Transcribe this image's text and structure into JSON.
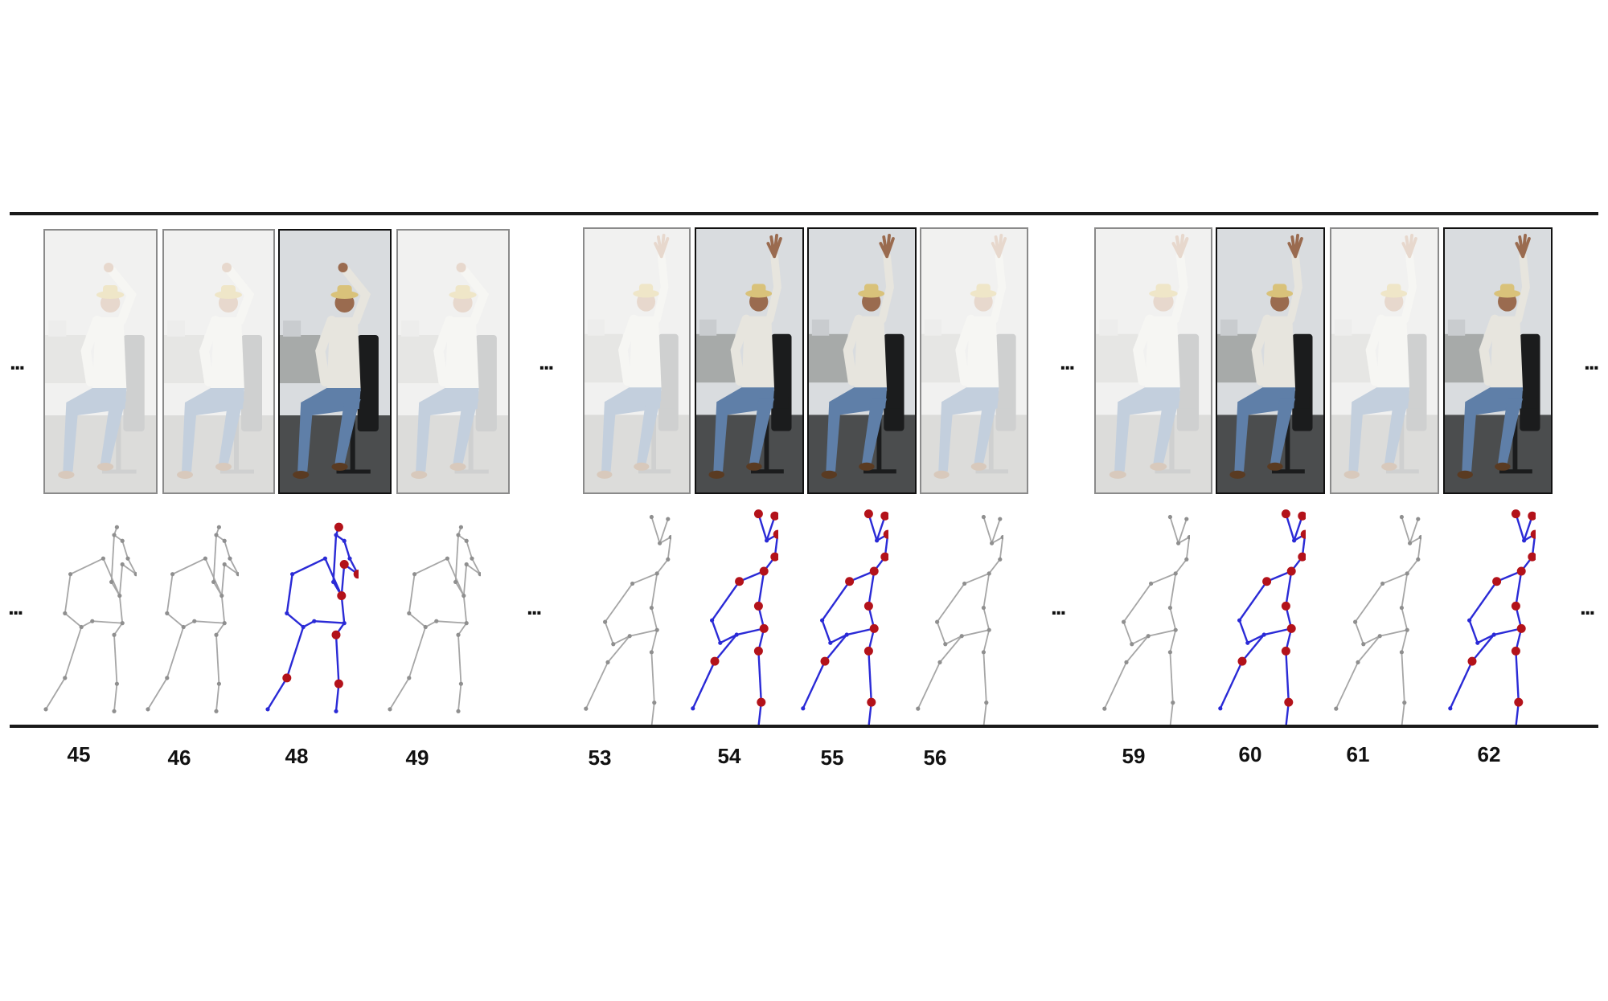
{
  "ellipsis": "...",
  "colors": {
    "faded_skeleton": "#a6a6a6",
    "key_skeleton": "#2a2ad6",
    "joint": "#b3121a",
    "rule": "#1a1a1a"
  },
  "groups": [
    {
      "pose": "thumb",
      "frames": [
        {
          "label": "45",
          "key": false
        },
        {
          "label": "46",
          "key": false
        },
        {
          "label": "48",
          "key": true
        },
        {
          "label": "49",
          "key": false
        }
      ]
    },
    {
      "pose": "wave",
      "frames": [
        {
          "label": "53",
          "key": false
        },
        {
          "label": "54",
          "key": true
        },
        {
          "label": "55",
          "key": true
        },
        {
          "label": "56",
          "key": false
        }
      ]
    },
    {
      "pose": "wave",
      "frames": [
        {
          "label": "59",
          "key": false
        },
        {
          "label": "60",
          "key": true
        },
        {
          "label": "61",
          "key": false
        },
        {
          "label": "62",
          "key": true
        }
      ]
    }
  ]
}
